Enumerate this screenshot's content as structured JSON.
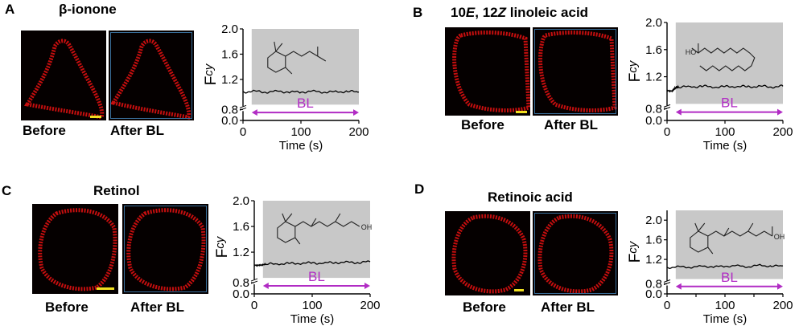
{
  "panels": [
    {
      "letter": "A",
      "title_parts": [
        {
          "text": "β-ionone",
          "italic": false
        }
      ],
      "before_label": "Before",
      "after_label": "After BL",
      "molecule": "beta-ionone-structure",
      "chart_data": {
        "type": "line",
        "xlabel": "Time (s)",
        "ylabel": "F",
        "ylabel_sub": "cy",
        "x_ticks": [
          0,
          100,
          200
        ],
        "y_ticks": [
          0.0,
          0.8,
          1.2,
          1.6,
          2.0
        ],
        "y_tick_labels": [
          "0.0",
          "0.8",
          "1.2",
          "1.6",
          "2.0"
        ],
        "xlim": [
          0,
          200
        ],
        "ylim": [
          0,
          2.0
        ],
        "axis_break": true,
        "shaded_region": [
          15,
          200
        ],
        "annotation": {
          "text": "BL",
          "x_start": 15,
          "x_end": 200
        },
        "series": [
          {
            "x": [
              0,
              20,
              40,
              60,
              80,
              100,
              120,
              140,
              160,
              180,
              200
            ],
            "y": [
              1.0,
              1.01,
              1.0,
              1.01,
              1.0,
              1.0,
              1.01,
              1.0,
              1.0,
              1.01,
              1.0
            ]
          }
        ]
      }
    },
    {
      "letter": "B",
      "title_parts": [
        {
          "text": "10",
          "italic": false
        },
        {
          "text": "E",
          "italic": true
        },
        {
          "text": ", 12",
          "italic": false
        },
        {
          "text": "Z",
          "italic": true
        },
        {
          "text": " linoleic acid",
          "italic": false
        }
      ],
      "before_label": "Before",
      "after_label": "After BL",
      "molecule": "linoleic-acid-structure",
      "molecule_label": "HO",
      "chart_data": {
        "type": "line",
        "xlabel": "Time (s)",
        "ylabel": "F",
        "ylabel_sub": "cy",
        "x_ticks": [
          0,
          100,
          200
        ],
        "y_ticks": [
          0.0,
          0.8,
          1.2,
          1.6,
          2.0
        ],
        "y_tick_labels": [
          "0.0",
          "0.8",
          "1.2",
          "1.6",
          "2.0"
        ],
        "xlim": [
          0,
          200
        ],
        "ylim": [
          0,
          2.0
        ],
        "axis_break": true,
        "shaded_region": [
          15,
          200
        ],
        "annotation": {
          "text": "BL",
          "x_start": 15,
          "x_end": 200
        },
        "series": [
          {
            "x": [
              0,
              10,
              15,
              20,
              40,
              60,
              80,
              100,
              120,
              140,
              160,
              180,
              200
            ],
            "y": [
              1.0,
              1.0,
              1.04,
              1.05,
              1.05,
              1.06,
              1.05,
              1.05,
              1.06,
              1.05,
              1.06,
              1.05,
              1.06
            ]
          }
        ]
      }
    },
    {
      "letter": "C",
      "title_parts": [
        {
          "text": "Retinol",
          "italic": false
        }
      ],
      "before_label": "Before",
      "after_label": "After BL",
      "molecule": "retinol-structure",
      "molecule_label": "OH",
      "chart_data": {
        "type": "line",
        "xlabel": "Time (s)",
        "ylabel": "F",
        "ylabel_sub": "cy",
        "x_ticks": [
          0,
          100,
          200
        ],
        "y_ticks": [
          0.0,
          0.8,
          1.2,
          1.6,
          2.0
        ],
        "y_tick_labels": [
          "0.0",
          "0.8",
          "1.2",
          "1.6",
          "2.0"
        ],
        "xlim": [
          0,
          200
        ],
        "ylim": [
          0,
          2.0
        ],
        "axis_break": true,
        "shaded_region": [
          15,
          200
        ],
        "annotation": {
          "text": "BL",
          "x_start": 15,
          "x_end": 200
        },
        "series": [
          {
            "x": [
              0,
              10,
              20,
              40,
              60,
              80,
              100,
              120,
              140,
              160,
              180,
              200
            ],
            "y": [
              1.0,
              1.01,
              1.01,
              1.02,
              1.02,
              1.03,
              1.03,
              1.03,
              1.04,
              1.04,
              1.04,
              1.05
            ]
          }
        ]
      }
    },
    {
      "letter": "D",
      "title_parts": [
        {
          "text": "Retinoic acid",
          "italic": false
        }
      ],
      "before_label": "Before",
      "after_label": "After BL",
      "molecule": "retinoic-acid-structure",
      "molecule_label": "OH",
      "chart_data": {
        "type": "line",
        "xlabel": "Time (s)",
        "ylabel": "F",
        "ylabel_sub": "cy",
        "x_ticks": [
          0,
          50,
          100,
          150,
          200
        ],
        "x_tick_labels": [
          "0",
          "",
          "100",
          "",
          "200"
        ],
        "y_ticks": [
          0.0,
          0.8,
          1.2,
          1.6,
          2.0
        ],
        "y_tick_labels": [
          "0.0",
          "0.8",
          "1.2",
          "1.6",
          "2.0"
        ],
        "xlim": [
          0,
          200
        ],
        "ylim": [
          0,
          2.2
        ],
        "axis_break": true,
        "shaded_region": [
          15,
          200
        ],
        "annotation": {
          "text": "BL",
          "x_start": 15,
          "x_end": 200
        },
        "series": [
          {
            "x": [
              0,
              20,
              40,
              60,
              80,
              100,
              120,
              140,
              160,
              180,
              200
            ],
            "y": [
              1.03,
              1.05,
              1.04,
              1.06,
              1.05,
              1.06,
              1.07,
              1.05,
              1.08,
              1.06,
              1.07
            ]
          }
        ]
      }
    }
  ],
  "colors": {
    "trace": "#000000",
    "shade": "#c8c8c8",
    "annotation": "#b12cc4",
    "cell": "#e81010",
    "scale_bar": "#f0e020",
    "image_border": "#3a6f9a"
  }
}
